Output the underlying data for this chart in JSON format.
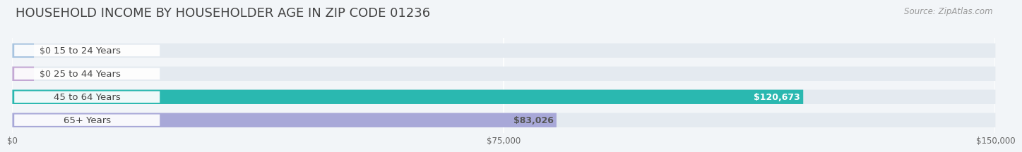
{
  "title": "HOUSEHOLD INCOME BY HOUSEHOLDER AGE IN ZIP CODE 01236",
  "source": "Source: ZipAtlas.com",
  "categories": [
    "15 to 24 Years",
    "25 to 44 Years",
    "45 to 64 Years",
    "65+ Years"
  ],
  "values": [
    0,
    0,
    120673,
    83026
  ],
  "bar_colors": [
    "#a8c4e0",
    "#c4a8d4",
    "#2ab8b0",
    "#a8a8d8"
  ],
  "label_colors": [
    "#555555",
    "#555555",
    "#ffffff",
    "#555555"
  ],
  "xlim": [
    0,
    150000
  ],
  "xticks": [
    0,
    75000,
    150000
  ],
  "xticklabels": [
    "$0",
    "$75,000",
    "$150,000"
  ],
  "background_color": "#f2f5f8",
  "bar_background_color": "#e4eaf0",
  "title_fontsize": 13,
  "source_fontsize": 8.5,
  "bar_height": 0.62,
  "bar_label_fontsize": 9,
  "category_fontsize": 9.5,
  "grid_color": "#ffffff",
  "label_box_color": "#ffffff",
  "label_text_color": "#444444"
}
